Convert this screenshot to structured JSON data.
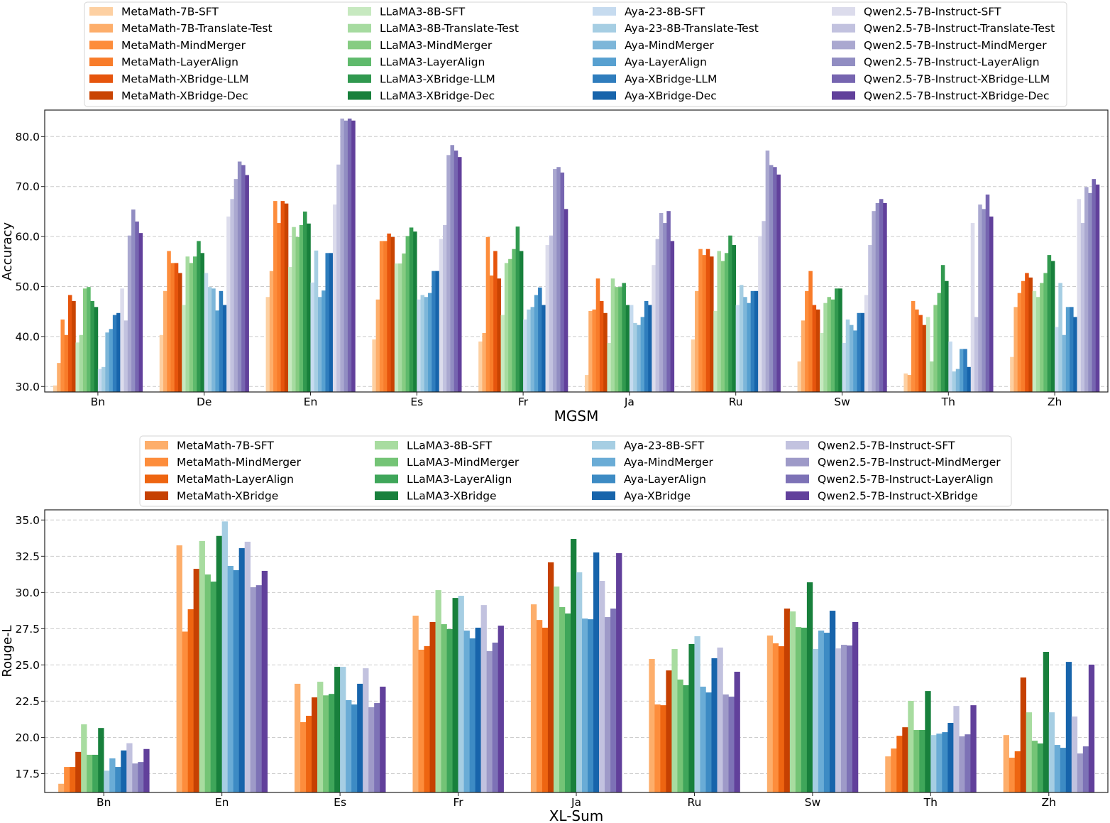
{
  "chart_data": [
    {
      "type": "bar",
      "title": "",
      "xlabel": "MGSM",
      "ylabel": "Accuracy",
      "ylim": [
        28.9,
        85.3
      ],
      "yticks": [
        "30.0",
        "40.0",
        "50.0",
        "60.0",
        "70.0",
        "80.0"
      ],
      "grid": "y-dashed",
      "legend": "top-outside",
      "categories": [
        "Bn",
        "De",
        "En",
        "Es",
        "Fr",
        "Ja",
        "Ru",
        "Sw",
        "Th",
        "Zh"
      ],
      "series": [
        {
          "name": "MetaMath-7B-SFT",
          "color": "#fdd0a2",
          "values": [
            30.2,
            40.3,
            47.9,
            39.4,
            39.0,
            32.3,
            39.4,
            35.0,
            32.6,
            35.9
          ]
        },
        {
          "name": "MetaMath-7B-Translate-Test",
          "color": "#fdae6b",
          "values": [
            34.7,
            49.1,
            53.1,
            47.4,
            40.7,
            45.1,
            49.1,
            43.2,
            32.3,
            45.9
          ]
        },
        {
          "name": "MetaMath-MindMerger",
          "color": "#fd8d3c",
          "values": [
            43.4,
            57.1,
            67.1,
            59.1,
            59.9,
            45.4,
            57.5,
            49.1,
            47.1,
            48.7
          ]
        },
        {
          "name": "MetaMath-LayerAlign",
          "color": "#f87c2a",
          "values": [
            40.3,
            54.7,
            62.7,
            59.1,
            52.2,
            51.6,
            56.3,
            53.1,
            45.4,
            51.1
          ]
        },
        {
          "name": "MetaMath-XBridge-LLM",
          "color": "#e6550d",
          "values": [
            48.3,
            54.7,
            67.1,
            60.6,
            57.1,
            47.1,
            57.5,
            46.3,
            44.3,
            52.7
          ]
        },
        {
          "name": "MetaMath-XBridge-Dec",
          "color": "#c94402",
          "values": [
            47.1,
            52.7,
            66.6,
            59.9,
            51.6,
            44.7,
            56.0,
            45.4,
            42.3,
            51.8
          ]
        },
        {
          "name": "LLaMA3-8B-SFT",
          "color": "#c7e9c0",
          "values": [
            38.8,
            46.3,
            53.9,
            54.6,
            44.3,
            38.7,
            45.1,
            40.7,
            43.9,
            49.1
          ]
        },
        {
          "name": "LLaMA3-8B-Translate-Test",
          "color": "#a6dba0",
          "values": [
            40.3,
            56.0,
            61.9,
            54.6,
            54.7,
            51.6,
            57.1,
            46.7,
            35.0,
            47.9
          ]
        },
        {
          "name": "LLaMA3-MindMerger",
          "color": "#86cc82",
          "values": [
            49.6,
            54.7,
            59.9,
            56.6,
            55.5,
            49.9,
            55.1,
            47.9,
            46.3,
            50.7
          ]
        },
        {
          "name": "LLaMA3-LayerAlign",
          "color": "#5fba6c",
          "values": [
            49.9,
            56.0,
            62.3,
            60.1,
            57.5,
            49.9,
            56.7,
            47.4,
            48.7,
            52.7
          ]
        },
        {
          "name": "LLaMA3-XBridge-LLM",
          "color": "#31994f",
          "values": [
            47.1,
            59.1,
            65.0,
            61.8,
            62.0,
            50.7,
            60.2,
            49.6,
            54.3,
            56.3
          ]
        },
        {
          "name": "LLaMA3-XBridge-Dec",
          "color": "#18803c",
          "values": [
            45.9,
            56.7,
            62.6,
            61.0,
            57.1,
            46.3,
            58.3,
            49.6,
            51.1,
            55.1
          ]
        },
        {
          "name": "Aya-23-8B-SFT",
          "color": "#c6dbef",
          "values": [
            33.5,
            52.7,
            50.8,
            47.4,
            43.4,
            46.3,
            46.3,
            38.7,
            39.0,
            41.9
          ]
        },
        {
          "name": "Aya-23-8B-Translate-Test",
          "color": "#a6cee3",
          "values": [
            33.9,
            49.9,
            57.2,
            48.3,
            45.4,
            42.7,
            50.3,
            43.4,
            33.0,
            50.7
          ]
        },
        {
          "name": "Aya-MindMerger",
          "color": "#7db6d9",
          "values": [
            40.8,
            49.6,
            47.9,
            47.9,
            45.9,
            42.3,
            47.9,
            42.3,
            33.5,
            40.3
          ]
        },
        {
          "name": "Aya-LayerAlign",
          "color": "#57a0d0",
          "values": [
            41.5,
            45.2,
            49.2,
            48.7,
            48.3,
            43.9,
            46.7,
            41.2,
            37.5,
            45.9
          ]
        },
        {
          "name": "Aya-XBridge-LLM",
          "color": "#2f7dbd",
          "values": [
            44.3,
            49.1,
            56.7,
            53.1,
            49.8,
            47.1,
            49.1,
            44.7,
            37.5,
            45.9
          ]
        },
        {
          "name": "Aya-XBridge-Dec",
          "color": "#1764ab",
          "values": [
            44.7,
            46.3,
            56.7,
            53.1,
            46.3,
            46.3,
            49.1,
            44.7,
            33.9,
            43.9
          ]
        },
        {
          "name": "Qwen2.5-7B-Instruct-SFT",
          "color": "#dcdcec",
          "values": [
            49.6,
            64.0,
            66.4,
            59.5,
            58.3,
            54.3,
            60.1,
            48.3,
            62.7,
            67.5
          ]
        },
        {
          "name": "Qwen2.5-7B-Instruct-Translate-Test",
          "color": "#c2c2df",
          "values": [
            43.2,
            67.5,
            74.4,
            62.3,
            60.2,
            59.5,
            63.1,
            58.3,
            43.9,
            62.7
          ]
        },
        {
          "name": "Qwen2.5-7B-Instruct-MindMerger",
          "color": "#aaa8d0",
          "values": [
            60.2,
            71.5,
            83.6,
            76.3,
            73.5,
            64.7,
            77.2,
            65.1,
            66.4,
            69.9
          ]
        },
        {
          "name": "Qwen2.5-7B-Instruct-LayerAlign",
          "color": "#918dc2",
          "values": [
            65.4,
            75.0,
            83.2,
            78.3,
            73.9,
            62.7,
            74.3,
            66.7,
            65.5,
            68.7
          ]
        },
        {
          "name": "Qwen2.5-7B-Instruct-XBridge-LLM",
          "color": "#7665b0",
          "values": [
            63.0,
            74.3,
            83.6,
            77.2,
            72.8,
            65.1,
            73.9,
            67.5,
            68.4,
            71.5
          ]
        },
        {
          "name": "Qwen2.5-7B-Instruct-XBridge-Dec",
          "color": "#61409b",
          "values": [
            60.7,
            72.3,
            83.2,
            75.9,
            65.5,
            59.1,
            72.4,
            66.7,
            64.0,
            70.4
          ]
        }
      ]
    },
    {
      "type": "bar",
      "title": "",
      "xlabel": "XL-Sum",
      "ylabel": "Rouge-L",
      "ylim": [
        16.2,
        35.7
      ],
      "yticks": [
        "17.5",
        "20.0",
        "22.5",
        "25.0",
        "27.5",
        "30.0",
        "32.5",
        "35.0"
      ],
      "grid": "y-dashed",
      "legend": "top-outside",
      "categories": [
        "Bn",
        "En",
        "Es",
        "Fr",
        "Ja",
        "Ru",
        "Sw",
        "Th",
        "Zh"
      ],
      "series": [
        {
          "name": "MetaMath-7B-SFT",
          "color": "#fdae6b",
          "values": [
            16.8,
            33.25,
            23.7,
            28.4,
            29.18,
            25.41,
            27.03,
            18.69,
            20.16
          ]
        },
        {
          "name": "MetaMath-MindMerger",
          "color": "#fd8d3c",
          "values": [
            17.96,
            27.3,
            21.05,
            26.05,
            28.1,
            22.27,
            26.49,
            19.23,
            18.6
          ]
        },
        {
          "name": "MetaMath-LayerAlign",
          "color": "#ee6511",
          "values": [
            17.96,
            28.84,
            21.49,
            26.3,
            27.57,
            22.22,
            26.29,
            20.11,
            19.04
          ]
        },
        {
          "name": "MetaMath-XBridge",
          "color": "#c64102",
          "values": [
            19.0,
            31.63,
            22.76,
            27.96,
            32.08,
            24.62,
            28.89,
            20.7,
            24.13
          ]
        },
        {
          "name": "LLaMA3-8B-SFT",
          "color": "#a8dca0",
          "values": [
            20.9,
            33.55,
            23.84,
            30.16,
            30.41,
            26.1,
            28.69,
            22.52,
            21.73
          ]
        },
        {
          "name": "LLaMA3-MindMerger",
          "color": "#74c476",
          "values": [
            18.8,
            31.24,
            22.9,
            27.81,
            28.99,
            23.99,
            27.61,
            20.51,
            19.77
          ]
        },
        {
          "name": "LLaMA3-LayerAlign",
          "color": "#3fa65a",
          "values": [
            18.8,
            30.75,
            23.0,
            27.47,
            28.55,
            23.6,
            27.57,
            20.51,
            19.58
          ]
        },
        {
          "name": "LLaMA3-XBridge",
          "color": "#18803c",
          "values": [
            20.65,
            33.9,
            24.87,
            29.62,
            33.69,
            26.44,
            30.7,
            23.2,
            25.9
          ]
        },
        {
          "name": "Aya-23-8B-SFT",
          "color": "#a6cee3",
          "values": [
            17.7,
            34.9,
            24.87,
            29.77,
            31.39,
            26.98,
            26.1,
            20.16,
            21.73
          ]
        },
        {
          "name": "Aya-MindMerger",
          "color": "#6aacd6",
          "values": [
            18.55,
            31.83,
            22.57,
            27.37,
            28.2,
            23.5,
            27.37,
            20.26,
            19.48
          ]
        },
        {
          "name": "Aya-LayerAlign",
          "color": "#3d8bc4",
          "values": [
            17.96,
            31.54,
            22.27,
            26.83,
            28.15,
            23.1,
            27.22,
            20.36,
            19.28
          ]
        },
        {
          "name": "Aya-XBridge",
          "color": "#1764ab",
          "values": [
            19.1,
            33.06,
            23.7,
            27.57,
            32.76,
            25.46,
            28.74,
            21.0,
            25.21
          ]
        },
        {
          "name": "Qwen2.5-7B-Instruct-SFT",
          "color": "#c2c2df",
          "values": [
            19.6,
            33.5,
            24.77,
            29.13,
            30.8,
            26.2,
            26.14,
            22.17,
            21.44
          ]
        },
        {
          "name": "Qwen2.5-7B-Instruct-MindMerger",
          "color": "#9e9ac8",
          "values": [
            18.2,
            30.36,
            22.08,
            25.95,
            28.3,
            22.96,
            26.39,
            20.07,
            18.89
          ]
        },
        {
          "name": "Qwen2.5-7B-Instruct-LayerAlign",
          "color": "#7d72b6",
          "values": [
            18.3,
            30.5,
            22.37,
            26.54,
            28.89,
            22.81,
            26.34,
            20.21,
            19.38
          ]
        },
        {
          "name": "Qwen2.5-7B-Instruct-XBridge",
          "color": "#61409b",
          "values": [
            19.2,
            31.49,
            23.5,
            27.71,
            32.71,
            24.53,
            27.96,
            22.22,
            25.02
          ]
        }
      ]
    }
  ]
}
